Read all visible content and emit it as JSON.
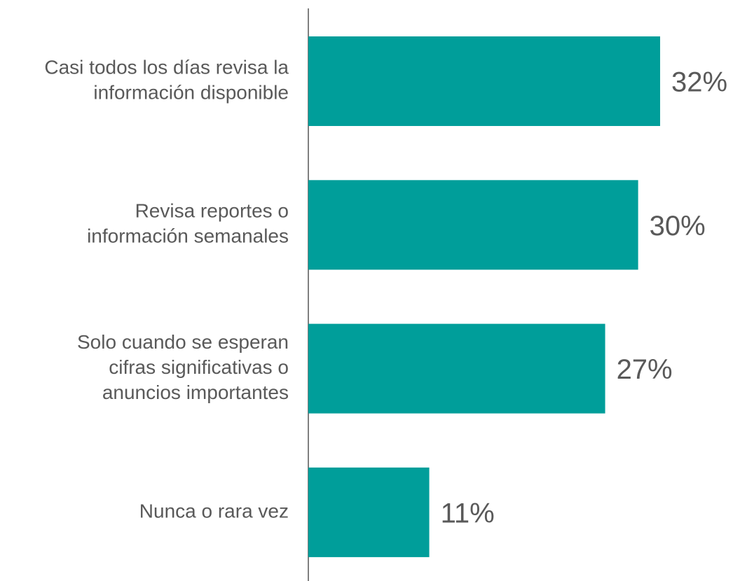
{
  "chart_data": {
    "type": "bar",
    "orientation": "horizontal",
    "categories": [
      [
        "Casi todos los días revisa la",
        "información disponible"
      ],
      [
        "Revisa reportes o",
        "información semanales"
      ],
      [
        "Solo cuando se esperan",
        "cifras significativas o",
        "anuncios importantes"
      ],
      [
        "Nunca o rara vez"
      ]
    ],
    "values": [
      32,
      30,
      27,
      11
    ],
    "value_labels": [
      "32%",
      "30%",
      "27%",
      "11%"
    ],
    "color": "#009e9a"
  }
}
